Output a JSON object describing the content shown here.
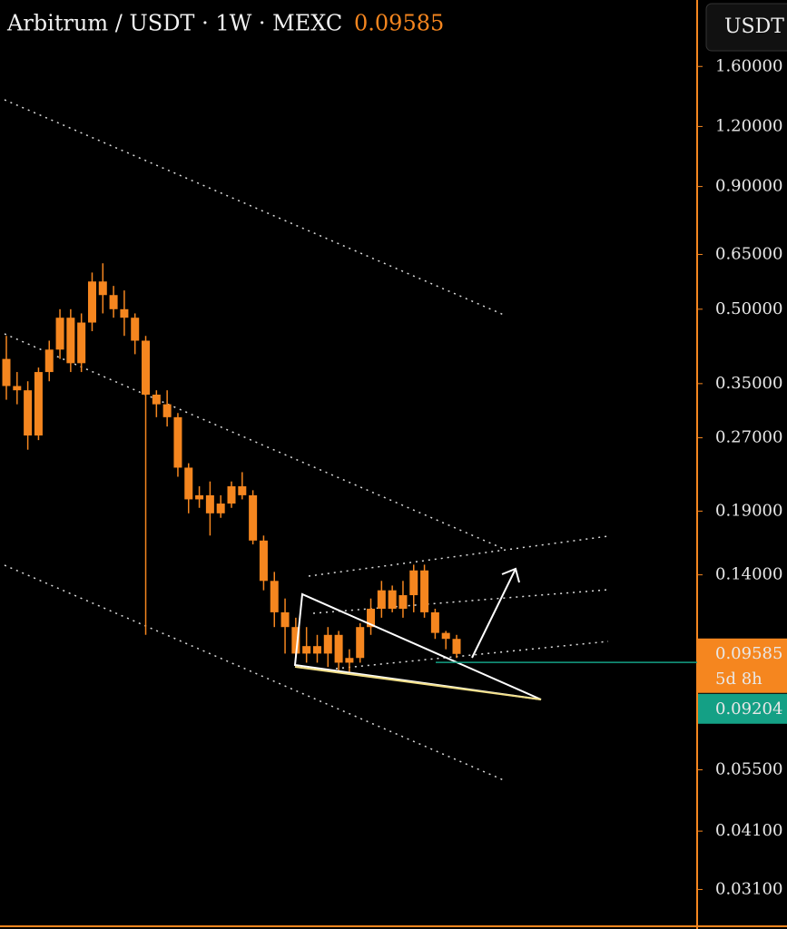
{
  "chart_data": {
    "type": "candlestick",
    "title": "Arbitrum / USDT · 1W · MEXC",
    "last_price": 0.09585,
    "currency": "USDT",
    "countdown": "5d 8h",
    "marked_price": 0.09204,
    "color": "#f5861f",
    "marked_color": "#14a085",
    "log_scale": true,
    "grid": false,
    "ylim": [
      0.0261,
      2.2
    ],
    "yticks": [
      {
        "value": 1.6,
        "label": "1.60000"
      },
      {
        "value": 1.2,
        "label": "1.20000"
      },
      {
        "value": 0.9,
        "label": "0.90000"
      },
      {
        "value": 0.65,
        "label": "0.65000"
      },
      {
        "value": 0.5,
        "label": "0.50000"
      },
      {
        "value": 0.35,
        "label": "0.35000"
      },
      {
        "value": 0.27,
        "label": "0.27000"
      },
      {
        "value": 0.19,
        "label": "0.19000"
      },
      {
        "value": 0.14,
        "label": "0.14000"
      },
      {
        "value": 0.055,
        "label": "0.05500"
      },
      {
        "value": 0.041,
        "label": "0.04100"
      },
      {
        "value": 0.031,
        "label": "0.03100"
      }
    ],
    "series": [
      {
        "name": "ARB/USDT",
        "open": [
          0.394,
          0.346,
          0.339,
          0.273,
          0.37,
          0.412,
          0.48,
          0.386,
          0.469,
          0.571,
          0.535,
          0.5,
          0.48,
          0.43,
          0.332,
          0.317,
          0.298,
          0.234,
          0.201,
          0.205,
          0.188,
          0.197,
          0.214,
          0.205,
          0.165,
          0.136,
          0.117,
          0.109,
          0.096,
          0.0995,
          0.096,
          0.105,
          0.0919,
          0.094,
          0.109,
          0.119,
          0.13,
          0.119,
          0.127,
          0.143,
          0.117,
          0.106,
          0.103
        ],
        "high": [
          0.44,
          0.37,
          0.354,
          0.378,
          0.43,
          0.5,
          0.5,
          0.49,
          0.596,
          0.623,
          0.559,
          0.547,
          0.49,
          0.44,
          0.339,
          0.339,
          0.304,
          0.239,
          0.214,
          0.219,
          0.205,
          0.219,
          0.229,
          0.21,
          0.169,
          0.142,
          0.125,
          0.114,
          0.109,
          0.105,
          0.109,
          0.107,
          0.098,
          0.111,
          0.125,
          0.136,
          0.133,
          0.136,
          0.147,
          0.147,
          0.119,
          0.107,
          0.105
        ],
        "low": [
          0.324,
          0.317,
          0.255,
          0.267,
          0.354,
          0.394,
          0.37,
          0.37,
          0.45,
          0.49,
          0.48,
          0.44,
          0.403,
          0.105,
          0.298,
          0.285,
          0.224,
          0.188,
          0.193,
          0.169,
          0.184,
          0.193,
          0.201,
          0.162,
          0.13,
          0.109,
          0.096,
          0.094,
          0.0919,
          0.0919,
          0.09,
          0.088,
          0.088,
          0.0919,
          0.105,
          0.114,
          0.117,
          0.114,
          0.117,
          0.114,
          0.103,
          0.098,
          0.094
        ],
        "close": [
          0.346,
          0.339,
          0.273,
          0.37,
          0.412,
          0.48,
          0.386,
          0.469,
          0.571,
          0.535,
          0.5,
          0.48,
          0.43,
          0.332,
          0.317,
          0.298,
          0.234,
          0.201,
          0.205,
          0.188,
          0.197,
          0.214,
          0.205,
          0.165,
          0.136,
          0.117,
          0.109,
          0.096,
          0.0995,
          0.096,
          0.105,
          0.0919,
          0.094,
          0.109,
          0.119,
          0.13,
          0.119,
          0.127,
          0.143,
          0.117,
          0.106,
          0.103,
          0.09585
        ]
      }
    ]
  }
}
